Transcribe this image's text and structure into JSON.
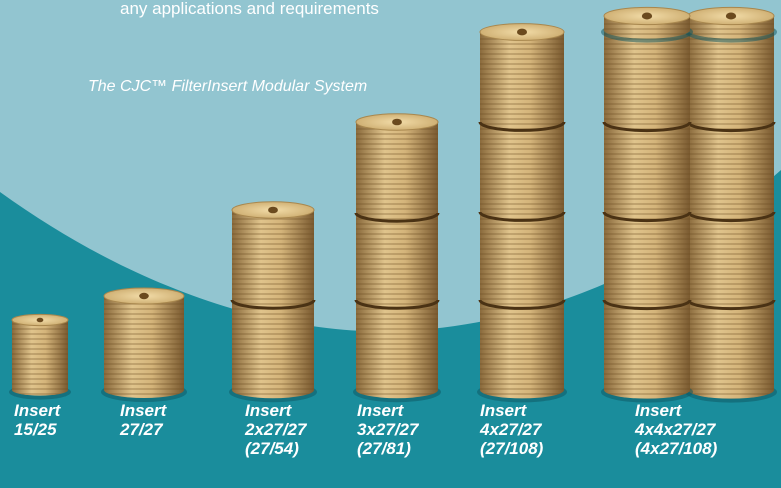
{
  "header": {
    "text": "any applications and requirements",
    "subtitle": "The CJC™ FilterInsert Modular System"
  },
  "products": [
    {
      "lines": [
        "Insert",
        "15/25"
      ]
    },
    {
      "lines": [
        "Insert",
        "27/27"
      ]
    },
    {
      "lines": [
        "Insert",
        "2x27/27",
        "(27/54)"
      ]
    },
    {
      "lines": [
        "Insert",
        "3x27/27",
        "(27/81)"
      ]
    },
    {
      "lines": [
        "Insert",
        "4x27/27",
        "(27/108)"
      ]
    },
    {
      "lines": [
        "Insert",
        "4x4x27/27",
        "(4x27/108)"
      ]
    }
  ]
}
